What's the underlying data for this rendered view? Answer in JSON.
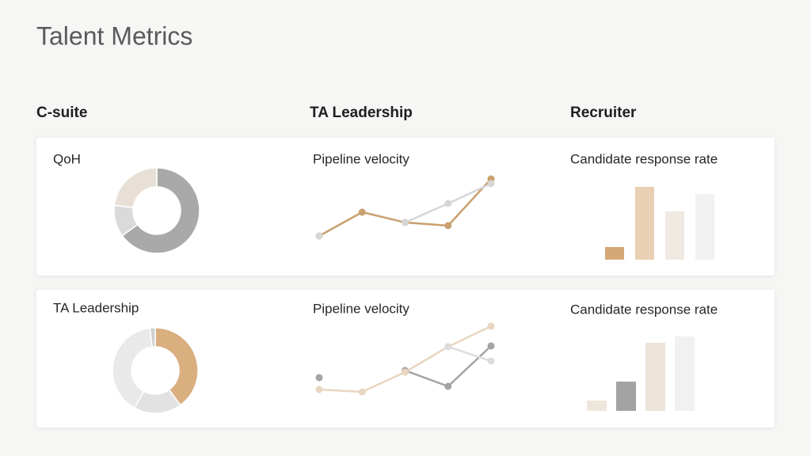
{
  "title": "Talent Metrics",
  "columns": [
    "C-suite",
    "TA Leadership",
    "Recruiter"
  ],
  "chart_data": [
    {
      "type": "pie",
      "title": "QoH",
      "values": [
        65,
        12,
        23
      ],
      "colors": [
        "#a9a9a9",
        "#dadada",
        "#e8e0d6"
      ]
    },
    {
      "type": "line",
      "title": "Pipeline velocity",
      "categories": [
        null,
        null,
        null,
        null,
        null
      ],
      "series": [
        {
          "color": "#c9a06e",
          "values": [
            1,
            16,
            9.5,
            7.5,
            37
          ]
        },
        {
          "color": "#d6d6d6",
          "values": [
            1,
            null,
            9.5,
            21.5,
            34
          ]
        }
      ]
    },
    {
      "type": "bar",
      "title": "Candidate response rate",
      "values": [
        16,
        92,
        61,
        83
      ],
      "colors": [
        "#d6a877",
        "#e9cfb3",
        "#f0e9e1",
        "#f1f1f1"
      ]
    },
    {
      "type": "pie",
      "title": "TA Leadership",
      "values": [
        40,
        18,
        40,
        2
      ],
      "colors": [
        "#d9af80",
        "#e2e2e2",
        "#e9e9e9",
        "#cfcfcf"
      ]
    },
    {
      "type": "line",
      "title": "Pipeline velocity",
      "categories": [
        null,
        null,
        null,
        null,
        null
      ],
      "series": [
        {
          "color": "#a3a3a3",
          "values": [
            11.5,
            null,
            16,
            6,
            31.5
          ]
        },
        {
          "color": "#e8d6c1",
          "values": [
            4,
            2.5,
            15,
            31,
            44
          ]
        },
        {
          "color": "#dcdcdc",
          "values": [
            null,
            null,
            null,
            31,
            22
          ]
        }
      ]
    },
    {
      "type": "bar",
      "title": "Candidate response rate",
      "values": [
        13,
        37,
        86,
        94
      ],
      "colors": [
        "#efe6db",
        "#a3a3a3",
        "#ece4d9",
        "#f1f1f1"
      ]
    }
  ]
}
